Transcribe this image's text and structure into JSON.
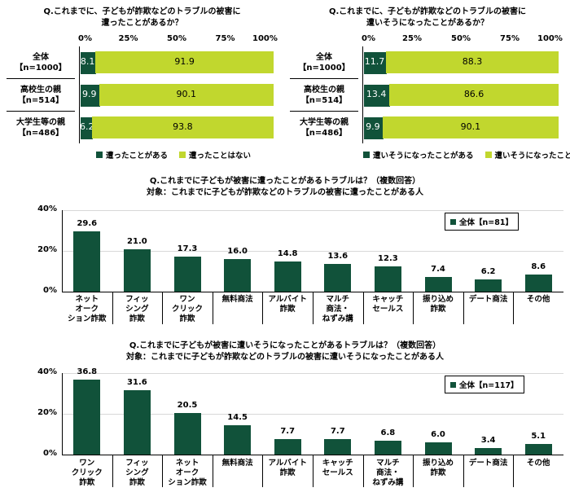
{
  "colors": {
    "dark": "#11523a",
    "light": "#c1d72e",
    "grid": "#d8d8d8"
  },
  "chart_data": [
    {
      "type": "bar",
      "orientation": "horizontal-stacked",
      "title": "Q.これまでに、子どもが詐欺などのトラブルの被害に\n遭ったことがあるか？",
      "x_ticks": [
        "0%",
        "25%",
        "50%",
        "75%",
        "100%"
      ],
      "xlim": [
        0,
        100
      ],
      "categories": [
        "全体\n【n=1000】",
        "高校生の親\n【n=514】",
        "大学生等の親\n【n=486】"
      ],
      "series": [
        {
          "name": "遭ったことがある",
          "values": [
            8.1,
            9.9,
            6.2
          ]
        },
        {
          "name": "遭ったことはない",
          "values": [
            91.9,
            90.1,
            93.8
          ]
        }
      ],
      "legend": "bottom"
    },
    {
      "type": "bar",
      "orientation": "horizontal-stacked",
      "title": "Q.これまでに、子どもが詐欺などのトラブルの被害に\n遭いそうになったことがあるか？",
      "x_ticks": [
        "0%",
        "25%",
        "50%",
        "75%",
        "100%"
      ],
      "xlim": [
        0,
        100
      ],
      "categories": [
        "全体\n【n=1000】",
        "高校生の親\n【n=514】",
        "大学生等の親\n【n=486】"
      ],
      "series": [
        {
          "name": "遭いそうになったことがある",
          "values": [
            11.7,
            13.4,
            9.9
          ]
        },
        {
          "name": "遭いそうになったことはない",
          "values": [
            88.3,
            86.6,
            90.1
          ]
        }
      ],
      "legend": "bottom"
    },
    {
      "type": "bar",
      "title": "Q.これまでに子どもが被害に遭ったことがあるトラブルは？（複数回答）",
      "subtitle": "対象：これまでに子どもが詐欺などのトラブルの被害に遭ったことがある人",
      "y_ticks": [
        "40%",
        "20%",
        "0%"
      ],
      "ylim": [
        0,
        40
      ],
      "categories": [
        "ネット\nオーク\nション詐欺",
        "フィッ\nシング\n詐欺",
        "ワン\nクリック\n詐欺",
        "無料商法",
        "アルバイト\n詐欺",
        "マルチ\n商法・\nねずみ講",
        "キャッチ\nセールス",
        "振り込め\n詐欺",
        "デート商法",
        "その他"
      ],
      "series": [
        {
          "name": "全体【n=81】",
          "values": [
            29.6,
            21.0,
            17.3,
            16.0,
            14.8,
            13.6,
            12.3,
            7.4,
            6.2,
            8.6
          ]
        }
      ],
      "value_labels": [
        "29.6",
        "21.0",
        "17.3",
        "16.0",
        "14.8",
        "13.6",
        "12.3",
        "7.4",
        "6.2",
        "8.6"
      ],
      "legend": "top-right"
    },
    {
      "type": "bar",
      "title": "Q.これまでに子どもが被害に遭いそうになったことがあるトラブルは？（複数回答）",
      "subtitle": "対象：これまでに子どもが詐欺などのトラブルの被害に遭いそうになったことがある人",
      "y_ticks": [
        "40%",
        "20%",
        "0%"
      ],
      "ylim": [
        0,
        40
      ],
      "categories": [
        "ワン\nクリック\n詐欺",
        "フィッ\nシング\n詐欺",
        "ネット\nオーク\nション詐欺",
        "無料商法",
        "アルバイト\n詐欺",
        "キャッチ\nセールス",
        "マルチ\n商法・\nねずみ講",
        "振り込め\n詐欺",
        "デート商法",
        "その他"
      ],
      "series": [
        {
          "name": "全体【n=117】",
          "values": [
            36.8,
            31.6,
            20.5,
            14.5,
            7.7,
            7.7,
            6.8,
            6.0,
            3.4,
            5.1
          ]
        }
      ],
      "value_labels": [
        "36.8",
        "31.6",
        "20.5",
        "14.5",
        "7.7",
        "7.7",
        "6.8",
        "6.0",
        "3.4",
        "5.1"
      ],
      "legend": "top-right"
    }
  ]
}
